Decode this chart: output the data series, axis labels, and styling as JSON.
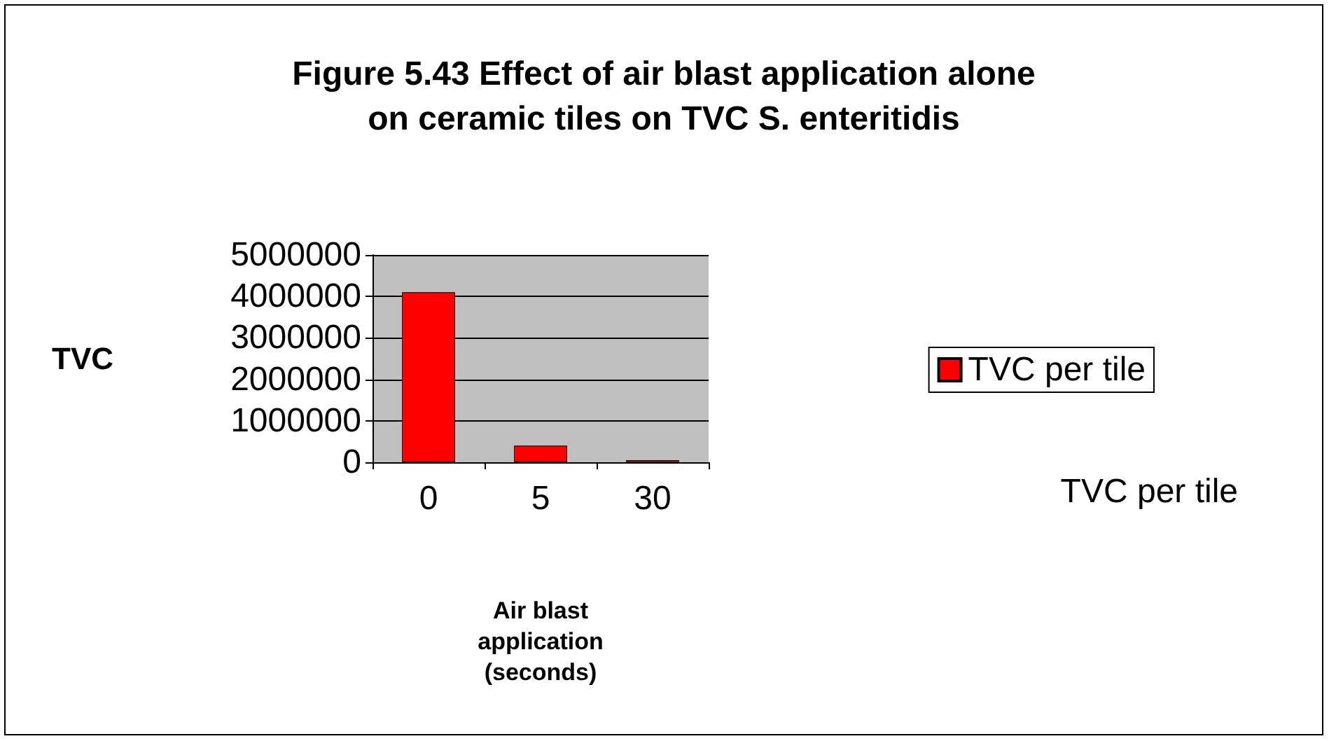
{
  "chart_data": {
    "type": "bar",
    "title": "Figure 5.43 Effect of air blast application alone\non ceramic tiles on TVC S. enteritidis",
    "xlabel": "Air blast\napplication\n(seconds)",
    "ylabel": "TVC",
    "categories": [
      "0",
      "5",
      "30"
    ],
    "series": [
      {
        "name": "TVC per tile",
        "color": "#ff0000",
        "values": [
          4100000,
          400000,
          50000
        ]
      }
    ],
    "ylim": [
      0,
      5000000
    ],
    "yticks": [
      0,
      1000000,
      2000000,
      3000000,
      4000000,
      5000000
    ],
    "grid": "y",
    "legend": "right",
    "annotations": [
      "TVC per tile"
    ]
  }
}
